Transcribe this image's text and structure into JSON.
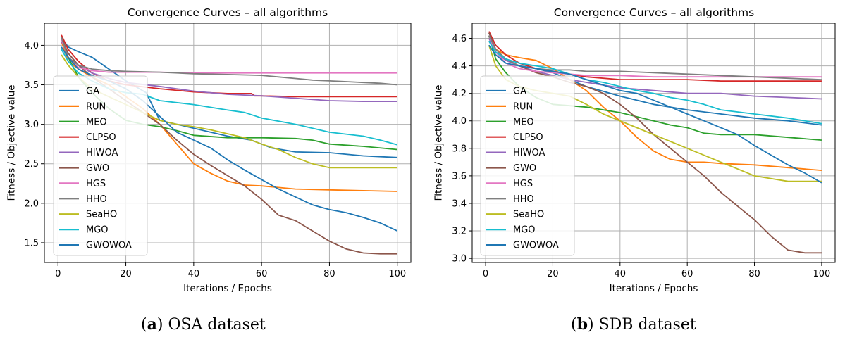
{
  "chart_data": [
    {
      "type": "line",
      "title": "Convergence Curves – all algorithms",
      "xlabel": "Iterations / Epochs",
      "ylabel": "Fitness / Objective value",
      "xlim": [
        -4,
        104
      ],
      "ylim": [
        1.25,
        4.28
      ],
      "xticks": [
        0,
        20,
        40,
        60,
        80,
        100
      ],
      "yticks": [
        1.5,
        2.0,
        2.5,
        3.0,
        3.5,
        4.0
      ],
      "ytick_labels": [
        "1.5",
        "2.0",
        "2.5",
        "3.0",
        "3.5",
        "4.0"
      ],
      "grid": true,
      "legend_position": "center-left",
      "caption_label": "a",
      "caption_text": " OSA dataset",
      "series": [
        {
          "name": "GA",
          "color": "#1f77b4",
          "x": [
            1,
            3,
            6,
            10,
            15,
            20,
            26,
            30,
            40,
            50,
            57,
            60,
            63,
            70,
            80,
            90,
            100
          ],
          "y": [
            4.1,
            3.98,
            3.92,
            3.85,
            3.7,
            3.55,
            3.4,
            3.05,
            2.95,
            2.85,
            2.8,
            2.75,
            2.7,
            2.65,
            2.64,
            2.6,
            2.58
          ]
        },
        {
          "name": "RUN",
          "color": "#ff7f0e",
          "x": [
            1,
            3,
            6,
            10,
            15,
            20,
            25,
            30,
            35,
            40,
            45,
            50,
            55,
            60,
            65,
            70,
            80,
            90,
            100
          ],
          "y": [
            4.05,
            3.8,
            3.7,
            3.6,
            3.5,
            3.35,
            3.2,
            3.0,
            2.75,
            2.5,
            2.38,
            2.28,
            2.23,
            2.22,
            2.2,
            2.18,
            2.17,
            2.16,
            2.15
          ]
        },
        {
          "name": "MEO",
          "color": "#2ca02c",
          "x": [
            1,
            3,
            6,
            10,
            15,
            20,
            25,
            30,
            35,
            40,
            50,
            60,
            70,
            75,
            80,
            90,
            100
          ],
          "y": [
            4.1,
            3.85,
            3.6,
            3.4,
            3.2,
            3.05,
            3.0,
            2.97,
            2.92,
            2.86,
            2.83,
            2.83,
            2.82,
            2.8,
            2.75,
            2.72,
            2.68
          ]
        },
        {
          "name": "CLPSO",
          "color": "#d62728",
          "x": [
            1,
            3,
            6,
            10,
            15,
            20,
            30,
            40,
            50,
            57,
            58,
            60,
            70,
            80,
            90,
            100
          ],
          "y": [
            4.13,
            3.95,
            3.8,
            3.65,
            3.55,
            3.5,
            3.45,
            3.41,
            3.39,
            3.39,
            3.36,
            3.36,
            3.35,
            3.35,
            3.35,
            3.35
          ]
        },
        {
          "name": "HIWOA",
          "color": "#9467bd",
          "x": [
            1,
            3,
            6,
            10,
            15,
            20,
            30,
            40,
            50,
            60,
            70,
            80,
            90,
            100
          ],
          "y": [
            4.05,
            3.9,
            3.75,
            3.65,
            3.58,
            3.53,
            3.48,
            3.42,
            3.38,
            3.36,
            3.33,
            3.3,
            3.29,
            3.29
          ]
        },
        {
          "name": "GWO",
          "color": "#8c564b",
          "x": [
            1,
            3,
            6,
            10,
            15,
            20,
            25,
            30,
            35,
            40,
            45,
            50,
            55,
            60,
            65,
            70,
            75,
            80,
            85,
            90,
            95,
            100
          ],
          "y": [
            4.1,
            3.9,
            3.75,
            3.6,
            3.45,
            3.3,
            3.15,
            3.0,
            2.8,
            2.62,
            2.48,
            2.35,
            2.22,
            2.05,
            1.85,
            1.78,
            1.65,
            1.52,
            1.42,
            1.37,
            1.36,
            1.36
          ]
        },
        {
          "name": "HGS",
          "color": "#e377c2",
          "x": [
            1,
            3,
            6,
            10,
            15,
            20,
            30,
            40,
            50,
            60,
            70,
            80,
            90,
            100
          ],
          "y": [
            4.08,
            3.85,
            3.72,
            3.68,
            3.66,
            3.66,
            3.66,
            3.65,
            3.65,
            3.65,
            3.65,
            3.65,
            3.65,
            3.65
          ]
        },
        {
          "name": "HHO",
          "color": "#7f7f7f",
          "x": [
            1,
            3,
            6,
            10,
            15,
            20,
            30,
            40,
            50,
            60,
            65,
            70,
            75,
            80,
            85,
            90,
            95,
            100
          ],
          "y": [
            4.1,
            3.85,
            3.75,
            3.7,
            3.68,
            3.67,
            3.66,
            3.64,
            3.63,
            3.62,
            3.6,
            3.58,
            3.56,
            3.55,
            3.54,
            3.53,
            3.52,
            3.5
          ]
        },
        {
          "name": "SeaHO",
          "color": "#bcbd22",
          "x": [
            1,
            3,
            6,
            10,
            15,
            20,
            25,
            30,
            35,
            40,
            45,
            50,
            55,
            60,
            65,
            70,
            75,
            80,
            90,
            100
          ],
          "y": [
            3.88,
            3.75,
            3.6,
            3.45,
            3.35,
            3.25,
            3.15,
            3.05,
            3.0,
            2.97,
            2.93,
            2.88,
            2.83,
            2.75,
            2.68,
            2.58,
            2.5,
            2.45,
            2.45,
            2.45
          ]
        },
        {
          "name": "MGO",
          "color": "#17becf",
          "x": [
            1,
            3,
            6,
            10,
            15,
            20,
            25,
            30,
            40,
            50,
            55,
            60,
            70,
            80,
            90,
            95,
            100
          ],
          "y": [
            3.95,
            3.8,
            3.65,
            3.55,
            3.45,
            3.4,
            3.38,
            3.3,
            3.25,
            3.18,
            3.15,
            3.08,
            3.0,
            2.9,
            2.85,
            2.8,
            2.74
          ]
        },
        {
          "name": "GWOWOA",
          "color": "#1f77b4",
          "x": [
            1,
            3,
            6,
            10,
            15,
            20,
            25,
            30,
            35,
            40,
            45,
            50,
            55,
            60,
            65,
            70,
            75,
            80,
            85,
            90,
            95,
            100
          ],
          "y": [
            3.98,
            3.85,
            3.7,
            3.62,
            3.55,
            3.45,
            3.3,
            3.1,
            2.9,
            2.8,
            2.7,
            2.55,
            2.42,
            2.3,
            2.18,
            2.08,
            1.98,
            1.92,
            1.88,
            1.82,
            1.75,
            1.65
          ]
        }
      ]
    },
    {
      "type": "line",
      "title": "Convergence Curves – all algorithms",
      "xlabel": "Iterations / Epochs",
      "ylabel": "Fitness / Objective value",
      "xlim": [
        -4,
        104
      ],
      "ylim": [
        2.97,
        4.71
      ],
      "xticks": [
        0,
        20,
        40,
        60,
        80,
        100
      ],
      "yticks": [
        3.0,
        3.2,
        3.4,
        3.6,
        3.8,
        4.0,
        4.2,
        4.4,
        4.6
      ],
      "ytick_labels": [
        "3.0",
        "3.2",
        "3.4",
        "3.6",
        "3.8",
        "4.0",
        "4.2",
        "4.4",
        "4.6"
      ],
      "grid": true,
      "legend_position": "center-left",
      "caption_label": "b",
      "caption_text": " SDB dataset",
      "series": [
        {
          "name": "GA",
          "color": "#1f77b4",
          "x": [
            1,
            3,
            6,
            10,
            15,
            20,
            25,
            30,
            40,
            50,
            60,
            70,
            80,
            90,
            100
          ],
          "y": [
            4.58,
            4.5,
            4.45,
            4.42,
            4.38,
            4.35,
            4.3,
            4.25,
            4.18,
            4.12,
            4.08,
            4.05,
            4.02,
            4.0,
            3.97
          ]
        },
        {
          "name": "RUN",
          "color": "#ff7f0e",
          "x": [
            1,
            3,
            6,
            10,
            15,
            20,
            25,
            30,
            35,
            40,
            45,
            50,
            55,
            60,
            65,
            70,
            80,
            90,
            100
          ],
          "y": [
            4.6,
            4.52,
            4.48,
            4.46,
            4.44,
            4.38,
            4.3,
            4.22,
            4.1,
            4.0,
            3.88,
            3.78,
            3.72,
            3.7,
            3.7,
            3.69,
            3.68,
            3.66,
            3.64
          ]
        },
        {
          "name": "MEO",
          "color": "#2ca02c",
          "x": [
            1,
            3,
            6,
            10,
            15,
            20,
            25,
            30,
            40,
            50,
            55,
            60,
            65,
            70,
            80,
            90,
            100
          ],
          "y": [
            4.62,
            4.45,
            4.35,
            4.25,
            4.17,
            4.12,
            4.11,
            4.1,
            4.06,
            4.0,
            3.97,
            3.95,
            3.91,
            3.9,
            3.9,
            3.88,
            3.86
          ]
        },
        {
          "name": "CLPSO",
          "color": "#d62728",
          "x": [
            1,
            3,
            6,
            10,
            15,
            20,
            25,
            30,
            40,
            50,
            60,
            70,
            80,
            90,
            100
          ],
          "y": [
            4.65,
            4.55,
            4.48,
            4.42,
            4.38,
            4.36,
            4.34,
            4.32,
            4.3,
            4.3,
            4.3,
            4.29,
            4.29,
            4.29,
            4.29
          ]
        },
        {
          "name": "HIWOA",
          "color": "#9467bd",
          "x": [
            1,
            3,
            6,
            10,
            15,
            20,
            25,
            30,
            40,
            50,
            60,
            70,
            80,
            90,
            100
          ],
          "y": [
            4.6,
            4.5,
            4.44,
            4.4,
            4.36,
            4.33,
            4.3,
            4.28,
            4.24,
            4.22,
            4.2,
            4.2,
            4.18,
            4.17,
            4.16
          ]
        },
        {
          "name": "GWO",
          "color": "#8c564b",
          "x": [
            1,
            3,
            6,
            10,
            15,
            20,
            25,
            30,
            35,
            40,
            45,
            50,
            55,
            60,
            65,
            70,
            75,
            80,
            85,
            90,
            95,
            100
          ],
          "y": [
            4.64,
            4.52,
            4.45,
            4.4,
            4.35,
            4.32,
            4.28,
            4.25,
            4.2,
            4.12,
            4.02,
            3.9,
            3.8,
            3.7,
            3.6,
            3.48,
            3.38,
            3.28,
            3.16,
            3.06,
            3.04,
            3.04
          ]
        },
        {
          "name": "HGS",
          "color": "#e377c2",
          "x": [
            1,
            3,
            6,
            10,
            15,
            20,
            25,
            30,
            40,
            50,
            60,
            70,
            80,
            90,
            100
          ],
          "y": [
            4.62,
            4.5,
            4.42,
            4.38,
            4.36,
            4.35,
            4.34,
            4.33,
            4.33,
            4.32,
            4.32,
            4.32,
            4.32,
            4.32,
            4.32
          ]
        },
        {
          "name": "HHO",
          "color": "#7f7f7f",
          "x": [
            1,
            3,
            6,
            10,
            15,
            20,
            25,
            30,
            40,
            50,
            60,
            70,
            80,
            90,
            100
          ],
          "y": [
            4.62,
            4.52,
            4.45,
            4.4,
            4.38,
            4.37,
            4.37,
            4.36,
            4.36,
            4.35,
            4.34,
            4.33,
            4.32,
            4.31,
            4.3
          ]
        },
        {
          "name": "SeaHO",
          "color": "#bcbd22",
          "x": [
            1,
            3,
            6,
            10,
            15,
            20,
            25,
            30,
            35,
            40,
            45,
            50,
            55,
            60,
            65,
            70,
            75,
            80,
            90,
            100
          ],
          "y": [
            4.55,
            4.4,
            4.3,
            4.25,
            4.22,
            4.2,
            4.18,
            4.12,
            4.05,
            4.0,
            3.95,
            3.9,
            3.85,
            3.8,
            3.75,
            3.7,
            3.65,
            3.6,
            3.56,
            3.56
          ]
        },
        {
          "name": "MGO",
          "color": "#17becf",
          "x": [
            1,
            3,
            6,
            10,
            15,
            20,
            25,
            30,
            35,
            40,
            45,
            50,
            55,
            60,
            65,
            70,
            80,
            90,
            100
          ],
          "y": [
            4.58,
            4.5,
            4.45,
            4.42,
            4.4,
            4.38,
            4.34,
            4.3,
            4.28,
            4.25,
            4.22,
            4.2,
            4.17,
            4.15,
            4.12,
            4.08,
            4.05,
            4.02,
            3.98
          ]
        },
        {
          "name": "GWOWOA",
          "color": "#1f77b4",
          "x": [
            1,
            3,
            6,
            10,
            15,
            20,
            25,
            30,
            35,
            40,
            45,
            50,
            55,
            60,
            65,
            70,
            75,
            80,
            85,
            90,
            95,
            100
          ],
          "y": [
            4.55,
            4.48,
            4.42,
            4.4,
            4.38,
            4.36,
            4.34,
            4.3,
            4.26,
            4.22,
            4.2,
            4.15,
            4.1,
            4.05,
            4.0,
            3.95,
            3.9,
            3.82,
            3.75,
            3.68,
            3.62,
            3.55
          ]
        }
      ]
    }
  ]
}
